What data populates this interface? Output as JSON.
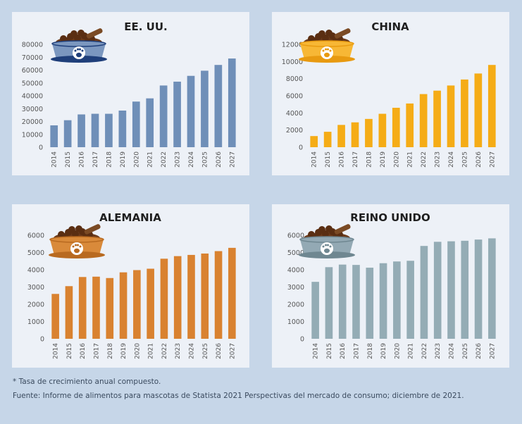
{
  "chart_data": [
    {
      "type": "bar",
      "title": "EE. UU.",
      "categories": [
        "2014",
        "2015",
        "2016",
        "2017",
        "2018",
        "2019",
        "2020",
        "2021",
        "2022",
        "2023",
        "2024",
        "2025",
        "2026",
        "2027"
      ],
      "values": [
        17000,
        21000,
        25500,
        26000,
        26000,
        28500,
        35500,
        38000,
        48000,
        51000,
        55500,
        59500,
        64000,
        69000
      ],
      "ylim": [
        0,
        80000
      ],
      "yticks": [
        0,
        10000,
        20000,
        30000,
        40000,
        50000,
        60000,
        70000,
        80000
      ],
      "color": "#6f8fb8",
      "bowl_color": "#7b97bf",
      "bowl_rim": "#1f3f7a",
      "xlabel": "",
      "ylabel": ""
    },
    {
      "type": "bar",
      "title": "CHINA",
      "categories": [
        "2014",
        "2015",
        "2016",
        "2017",
        "2018",
        "2019",
        "2020",
        "2021",
        "2022",
        "2023",
        "2024",
        "2025",
        "2026",
        "2027"
      ],
      "values": [
        1300,
        1800,
        2600,
        2900,
        3300,
        3900,
        4600,
        5100,
        6200,
        6600,
        7200,
        7900,
        8600,
        9600
      ],
      "ylim": [
        0,
        12000
      ],
      "yticks": [
        0,
        2000,
        4000,
        6000,
        8000,
        10000,
        12000
      ],
      "color": "#f5ac16",
      "bowl_color": "#f7b735",
      "bowl_rim": "#e89a10",
      "xlabel": "",
      "ylabel": ""
    },
    {
      "type": "bar",
      "title": "ALEMANIA",
      "categories": [
        "2014",
        "2015",
        "2016",
        "2017",
        "2018",
        "2019",
        "2020",
        "2021",
        "2022",
        "2023",
        "2024",
        "2025",
        "2026",
        "2027"
      ],
      "values": [
        2600,
        3050,
        3580,
        3600,
        3520,
        3850,
        3980,
        4060,
        4640,
        4790,
        4860,
        4940,
        5080,
        5270
      ],
      "ylim": [
        0,
        6000
      ],
      "yticks": [
        0,
        1000,
        2000,
        3000,
        4000,
        5000,
        6000
      ],
      "color": "#d98230",
      "bowl_color": "#d98a3a",
      "bowl_rim": "#b86a20",
      "xlabel": "",
      "ylabel": ""
    },
    {
      "type": "bar",
      "title": "REINO UNIDO",
      "categories": [
        "2014",
        "2015",
        "2016",
        "2017",
        "2018",
        "2019",
        "2020",
        "2021",
        "2022",
        "2023",
        "2024",
        "2025",
        "2026",
        "2027"
      ],
      "values": [
        3300,
        4150,
        4300,
        4280,
        4120,
        4380,
        4480,
        4520,
        5380,
        5620,
        5650,
        5680,
        5750,
        5820
      ],
      "ylim": [
        0,
        6000
      ],
      "yticks": [
        0,
        1000,
        2000,
        3000,
        4000,
        5000,
        6000
      ],
      "color": "#94acb5",
      "bowl_color": "#93a9b4",
      "bowl_rim": "#6f8791",
      "xlabel": "",
      "ylabel": ""
    }
  ],
  "footnotes": {
    "cagr": "* Tasa de crecimiento anual compuesto.",
    "source": "Fuente: Informe de alimentos para mascotas de Statista 2021 Perspectivas del mercado de consumo; diciembre de 2021."
  }
}
